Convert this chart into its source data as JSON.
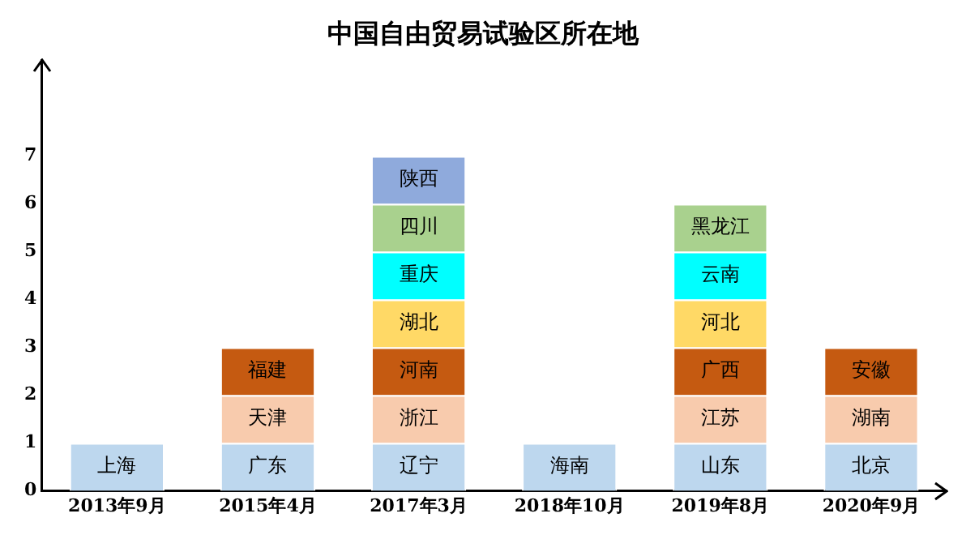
{
  "chart_data": {
    "type": "bar",
    "title": "中国自由贸易试验区所在地",
    "stacked": true,
    "categories": [
      "2013年9月",
      "2015年4月",
      "2017年3月",
      "2018年10月",
      "2019年8月",
      "2020年9月"
    ],
    "series": [
      {
        "color": "#bdd7ee",
        "values": [
          1,
          1,
          1,
          1,
          1,
          1
        ],
        "value_labels": [
          "上海",
          "广东",
          "辽宁",
          "海南",
          "山东",
          "北京"
        ]
      },
      {
        "color": "#f8cbad",
        "values": [
          null,
          1,
          1,
          null,
          1,
          1
        ],
        "value_labels": [
          null,
          "天津",
          "浙江",
          null,
          "江苏",
          "湖南"
        ]
      },
      {
        "color": "#c55a11",
        "values": [
          null,
          1,
          1,
          null,
          1,
          1
        ],
        "value_labels": [
          null,
          "福建",
          "河南",
          null,
          "广西",
          "安徽"
        ]
      },
      {
        "color": "#ffd966",
        "values": [
          null,
          null,
          1,
          null,
          1,
          null
        ],
        "value_labels": [
          null,
          null,
          "湖北",
          null,
          "河北",
          null
        ]
      },
      {
        "color": "#00ffff",
        "values": [
          null,
          null,
          1,
          null,
          1,
          null
        ],
        "value_labels": [
          null,
          null,
          "重庆",
          null,
          "云南",
          null
        ]
      },
      {
        "color": "#a9d18e",
        "values": [
          null,
          null,
          1,
          null,
          1,
          null
        ],
        "value_labels": [
          null,
          null,
          "四川",
          null,
          "黑龙江",
          null
        ]
      },
      {
        "color": "#8faadc",
        "values": [
          null,
          null,
          1,
          null,
          null,
          null
        ],
        "value_labels": [
          null,
          null,
          "陕西",
          null,
          null,
          null
        ]
      }
    ],
    "ylim": [
      0,
      9
    ],
    "yticks": [
      0,
      1,
      2,
      3,
      4,
      5,
      6,
      7
    ],
    "grid": false,
    "legend": false
  }
}
